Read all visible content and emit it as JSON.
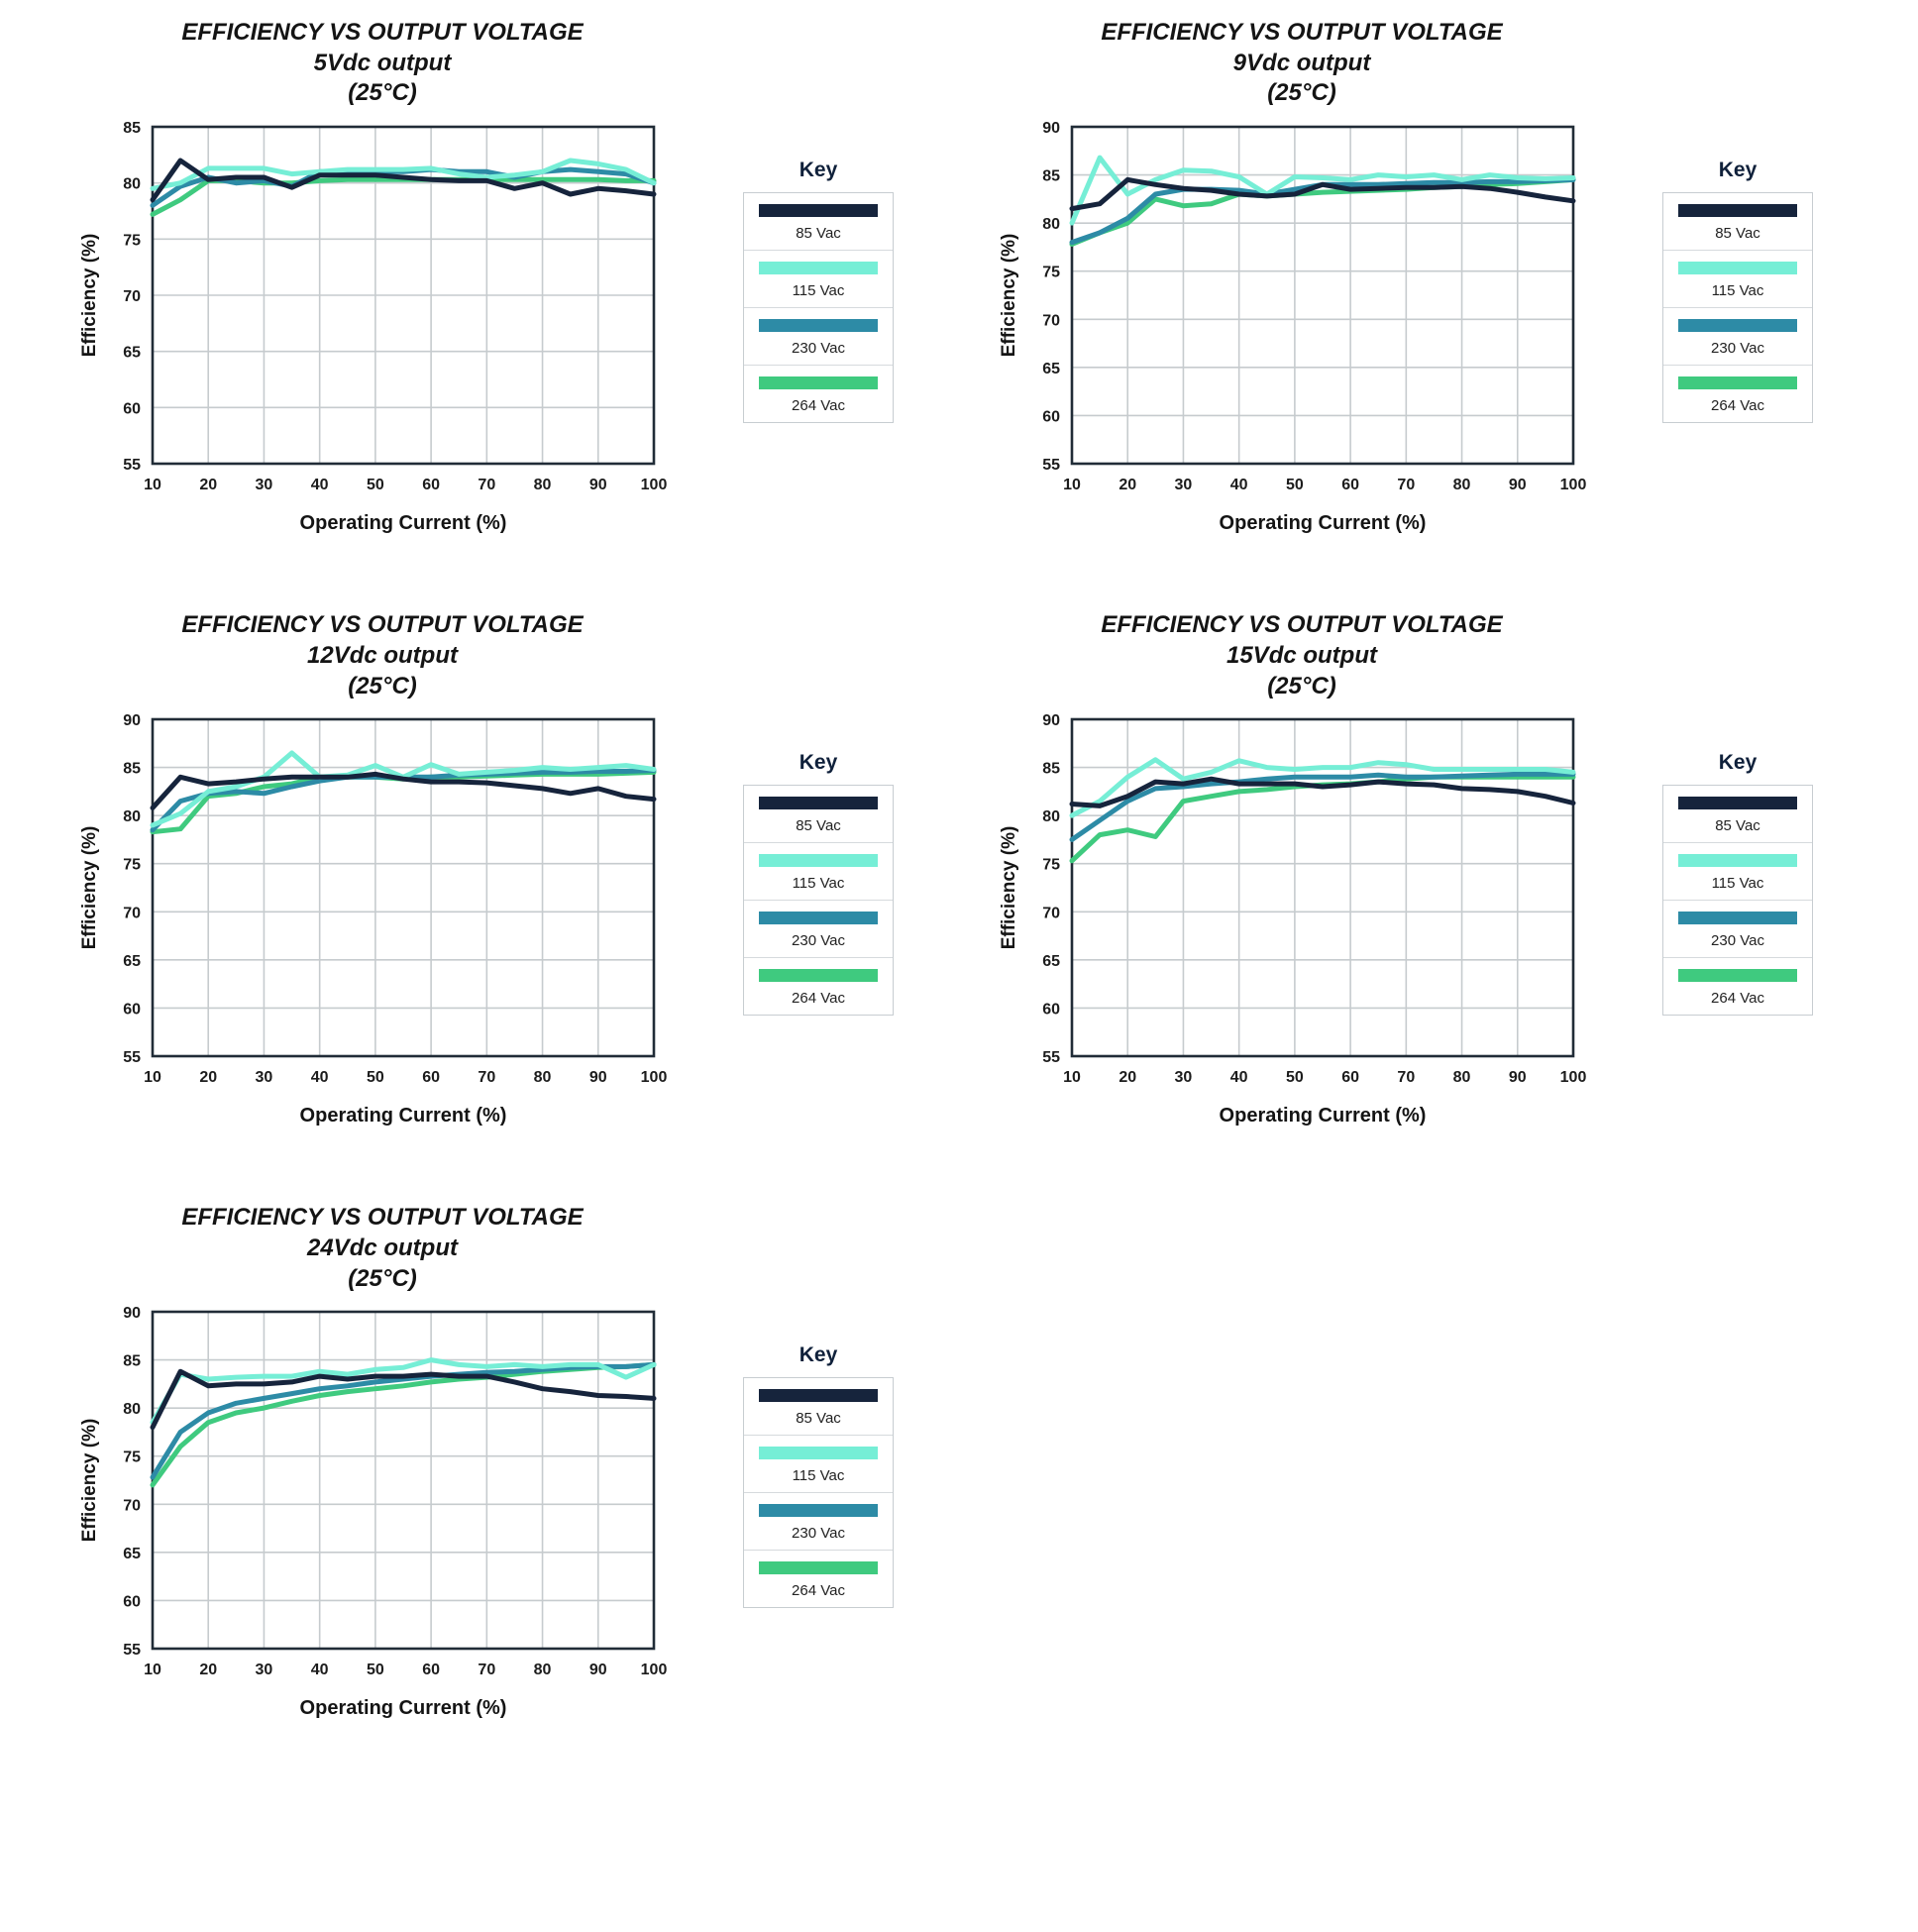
{
  "key_label": "Key",
  "style": {
    "grid_color": "#c6cbce",
    "border_color": "#212c37",
    "navy": "#16243c",
    "aqua": "#76eed6",
    "teal": "#2d8ba6",
    "green": "#3fca7f"
  },
  "chart_data": [
    {
      "type": "line",
      "title": "EFFICIENCY VS OUTPUT VOLTAGE",
      "subtitle": "5Vdc output",
      "condition": "(25°C)",
      "xlabel": "Operating Current (%)",
      "ylabel": "Efficiency (%)",
      "xlim": [
        10,
        100
      ],
      "ylim": [
        55,
        85
      ],
      "xtick_step": 10,
      "ytick_step": 5,
      "grid": true,
      "legend_position": "right",
      "x": [
        10,
        15,
        20,
        25,
        30,
        35,
        40,
        45,
        50,
        55,
        60,
        65,
        70,
        75,
        80,
        85,
        90,
        95,
        100
      ],
      "series": [
        {
          "name": "85 Vac",
          "color": "#16243c",
          "values": [
            78.5,
            82,
            80.3,
            80.5,
            80.5,
            79.6,
            80.7,
            80.7,
            80.7,
            80.5,
            80.3,
            80.2,
            80.2,
            79.5,
            80,
            79,
            79.5,
            79.3,
            79
          ]
        },
        {
          "name": "115 Vac",
          "color": "#76eed6",
          "values": [
            79.5,
            80,
            81.3,
            81.3,
            81.3,
            80.8,
            81,
            81.2,
            81.2,
            81.2,
            81.3,
            80.8,
            80.5,
            80.7,
            81,
            82,
            81.7,
            81.2,
            80
          ]
        },
        {
          "name": "230 Vac",
          "color": "#2d8ba6",
          "values": [
            78,
            79.7,
            80.5,
            80,
            80.2,
            79.7,
            81,
            81,
            81,
            81,
            81.2,
            81,
            81,
            80.5,
            81,
            81.2,
            81,
            80.8,
            80
          ]
        },
        {
          "name": "264 Vac",
          "color": "#3fca7f",
          "values": [
            77.2,
            78.5,
            80.2,
            80.2,
            80,
            80,
            80.2,
            80.3,
            80.3,
            80.3,
            80.3,
            80.3,
            80.3,
            80.3,
            80.3,
            80.3,
            80.3,
            80.2,
            80.2
          ]
        }
      ]
    },
    {
      "type": "line",
      "title": "EFFICIENCY VS OUTPUT VOLTAGE",
      "subtitle": "9Vdc output",
      "condition": "(25°C)",
      "xlabel": "Operating Current (%)",
      "ylabel": "Efficiency (%)",
      "xlim": [
        10,
        100
      ],
      "ylim": [
        55,
        90
      ],
      "xtick_step": 10,
      "ytick_step": 5,
      "grid": true,
      "legend_position": "right",
      "x": [
        10,
        15,
        20,
        25,
        30,
        35,
        40,
        45,
        50,
        55,
        60,
        65,
        70,
        75,
        80,
        85,
        90,
        95,
        100
      ],
      "series": [
        {
          "name": "85 Vac",
          "color": "#16243c",
          "values": [
            81.5,
            82,
            84.5,
            84,
            83.6,
            83.4,
            83,
            82.8,
            83,
            84,
            83.5,
            83.6,
            83.7,
            83.7,
            83.8,
            83.6,
            83.2,
            82.7,
            82.3
          ]
        },
        {
          "name": "115 Vac",
          "color": "#76eed6",
          "values": [
            80,
            86.8,
            83,
            84.5,
            85.5,
            85.4,
            84.8,
            83,
            84.8,
            84.7,
            84.5,
            85,
            84.8,
            85,
            84.5,
            85,
            84.7,
            84.6,
            84.7
          ]
        },
        {
          "name": "230 Vac",
          "color": "#2d8ba6",
          "values": [
            78,
            79,
            80.5,
            83,
            83.5,
            83.5,
            83.4,
            83,
            83.5,
            84,
            84,
            84,
            84.1,
            84.2,
            84.2,
            84.3,
            84.3,
            84.4,
            84.5
          ]
        },
        {
          "name": "264 Vac",
          "color": "#3fca7f",
          "values": [
            77.8,
            79,
            80,
            82.5,
            81.8,
            82,
            83,
            82.8,
            83,
            83.2,
            83.3,
            83.4,
            83.5,
            83.7,
            83.8,
            84,
            84.1,
            84.3,
            84.5
          ]
        }
      ]
    },
    {
      "type": "line",
      "title": "EFFICIENCY VS OUTPUT VOLTAGE",
      "subtitle": "12Vdc output",
      "condition": "(25°C)",
      "xlabel": "Operating Current (%)",
      "ylabel": "Efficiency (%)",
      "xlim": [
        10,
        100
      ],
      "ylim": [
        55,
        90
      ],
      "xtick_step": 10,
      "ytick_step": 5,
      "grid": true,
      "legend_position": "right",
      "x": [
        10,
        15,
        20,
        25,
        30,
        35,
        40,
        45,
        50,
        55,
        60,
        65,
        70,
        75,
        80,
        85,
        90,
        95,
        100
      ],
      "series": [
        {
          "name": "85 Vac",
          "color": "#16243c",
          "values": [
            80.8,
            84,
            83.3,
            83.5,
            83.8,
            84,
            84,
            84,
            84.3,
            83.8,
            83.5,
            83.5,
            83.4,
            83.1,
            82.8,
            82.3,
            82.8,
            82,
            81.7
          ]
        },
        {
          "name": "115 Vac",
          "color": "#76eed6",
          "values": [
            79,
            80.2,
            82.5,
            83,
            84,
            86.5,
            84,
            84.2,
            85.2,
            84,
            85.3,
            84.3,
            84.5,
            84.7,
            85,
            84.8,
            85,
            85.2,
            84.8
          ]
        },
        {
          "name": "230 Vac",
          "color": "#2d8ba6",
          "values": [
            78.5,
            81.5,
            82.3,
            82.5,
            82.3,
            83,
            83.6,
            84,
            84,
            84,
            84,
            84.2,
            84.3,
            84.4,
            84.5,
            84.5,
            84.6,
            84.6,
            84.7
          ]
        },
        {
          "name": "264 Vac",
          "color": "#3fca7f",
          "values": [
            78.3,
            78.6,
            82,
            82.3,
            83,
            83.3,
            84,
            84,
            84,
            83.8,
            84,
            84,
            84.1,
            84.2,
            84.3,
            84.3,
            84.3,
            84.4,
            84.5
          ]
        }
      ]
    },
    {
      "type": "line",
      "title": "EFFICIENCY VS OUTPUT VOLTAGE",
      "subtitle": "15Vdc output",
      "condition": "(25°C)",
      "xlabel": "Operating Current (%)",
      "ylabel": "Efficiency (%)",
      "xlim": [
        10,
        100
      ],
      "ylim": [
        55,
        90
      ],
      "xtick_step": 10,
      "ytick_step": 5,
      "grid": true,
      "legend_position": "right",
      "x": [
        10,
        15,
        20,
        25,
        30,
        35,
        40,
        45,
        50,
        55,
        60,
        65,
        70,
        75,
        80,
        85,
        90,
        95,
        100
      ],
      "series": [
        {
          "name": "85 Vac",
          "color": "#16243c",
          "values": [
            81.2,
            81,
            82,
            83.5,
            83.3,
            83.8,
            83.3,
            83.3,
            83.3,
            83,
            83.2,
            83.5,
            83.3,
            83.2,
            82.8,
            82.7,
            82.5,
            82,
            81.3
          ]
        },
        {
          "name": "115 Vac",
          "color": "#76eed6",
          "values": [
            80,
            81.5,
            84,
            85.8,
            83.8,
            84.5,
            85.7,
            85,
            84.8,
            85,
            85,
            85.5,
            85.3,
            84.8,
            84.8,
            84.8,
            84.8,
            84.8,
            84.5
          ]
        },
        {
          "name": "230 Vac",
          "color": "#2d8ba6",
          "values": [
            77.5,
            79.5,
            81.5,
            82.8,
            83,
            83.3,
            83.5,
            83.8,
            84,
            84,
            84,
            84.2,
            84,
            84,
            84.1,
            84.2,
            84.3,
            84.3,
            84.3
          ]
        },
        {
          "name": "264 Vac",
          "color": "#3fca7f",
          "values": [
            75.3,
            78,
            78.5,
            77.8,
            81.5,
            82,
            82.5,
            82.7,
            83,
            83.2,
            83.3,
            83.5,
            83.8,
            84,
            84,
            84,
            84,
            84,
            84
          ]
        }
      ]
    },
    {
      "type": "line",
      "title": "EFFICIENCY VS OUTPUT VOLTAGE",
      "subtitle": "24Vdc output",
      "condition": "(25°C)",
      "xlabel": "Operating Current (%)",
      "ylabel": "Efficiency (%)",
      "xlim": [
        10,
        100
      ],
      "ylim": [
        55,
        90
      ],
      "xtick_step": 10,
      "ytick_step": 5,
      "grid": true,
      "legend_position": "right",
      "x": [
        10,
        15,
        20,
        25,
        30,
        35,
        40,
        45,
        50,
        55,
        60,
        65,
        70,
        75,
        80,
        85,
        90,
        95,
        100
      ],
      "series": [
        {
          "name": "85 Vac",
          "color": "#16243c",
          "values": [
            78,
            83.8,
            82.3,
            82.5,
            82.5,
            82.7,
            83.3,
            83,
            83.3,
            83.3,
            83.5,
            83.3,
            83.3,
            82.7,
            82,
            81.7,
            81.3,
            81.2,
            81
          ]
        },
        {
          "name": "115 Vac",
          "color": "#76eed6",
          "values": [
            78.5,
            83.5,
            83,
            83.2,
            83.3,
            83.3,
            83.8,
            83.5,
            84,
            84.2,
            85,
            84.5,
            84.3,
            84.5,
            84.3,
            84.5,
            84.5,
            83.2,
            84.5
          ]
        },
        {
          "name": "230 Vac",
          "color": "#2d8ba6",
          "values": [
            72.8,
            77.5,
            79.5,
            80.5,
            81,
            81.5,
            82,
            82.3,
            82.7,
            83,
            83.3,
            83.5,
            83.7,
            83.8,
            84,
            84.2,
            84.3,
            84.3,
            84.5
          ]
        },
        {
          "name": "264 Vac",
          "color": "#3fca7f",
          "values": [
            72,
            76,
            78.5,
            79.5,
            80,
            80.7,
            81.3,
            81.7,
            82,
            82.3,
            82.7,
            83,
            83.2,
            83.5,
            83.8,
            84,
            84.2,
            84.3,
            84.5
          ]
        }
      ]
    }
  ]
}
